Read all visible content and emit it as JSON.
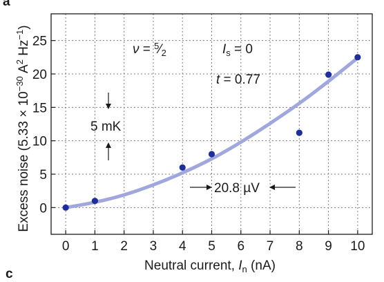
{
  "chart_data": {
    "type": "scatter",
    "panel_labels": [
      "a",
      "c"
    ],
    "xlabel_prefix": "Neutral current, ",
    "xlabel_symbol": "I",
    "xlabel_sub": "n",
    "xlabel_unit": " (nA)",
    "ylabel_prefix": "Excess noise (5.33 × 10",
    "ylabel_exp": "−30",
    "ylabel_mid": " A",
    "ylabel_exp2": "2",
    "ylabel_mid2": " Hz",
    "ylabel_exp3": "−1",
    "ylabel_suffix": ")",
    "xlim": [
      -0.5,
      10.5
    ],
    "ylim": [
      -4,
      29
    ],
    "xticks": [
      "0",
      "1",
      "2",
      "3",
      "4",
      "5",
      "6",
      "7",
      "8",
      "9",
      "10"
    ],
    "yticks": [
      "0",
      "5",
      "10",
      "15",
      "20",
      "25"
    ],
    "grid": true,
    "points": {
      "x": [
        0,
        1,
        4,
        5,
        8,
        9,
        10
      ],
      "y": [
        0,
        1,
        6,
        8,
        11.2,
        19.9,
        22.5
      ]
    },
    "fit_curve": {
      "x": [
        0,
        1,
        2,
        3,
        4,
        5,
        6,
        7,
        8,
        9,
        10
      ],
      "y": [
        0,
        0.8,
        1.9,
        3.4,
        5.2,
        7.3,
        9.8,
        12.6,
        15.6,
        18.9,
        22.4
      ]
    },
    "colors": {
      "points": "#1f2f9a",
      "curve": "#9fa7dc",
      "grid": "#7a7a7a"
    },
    "annotations": {
      "nu_symbol": "ν",
      "nu_eq": " = ",
      "nu_num": "5",
      "nu_den": "2",
      "is_symbol": "I",
      "is_sub": "s",
      "is_value": " = 0",
      "t_symbol": "t",
      "t_value": " = 0.77",
      "temp_scale": "5 mK",
      "voltage_scale": "20.8 µV"
    }
  }
}
